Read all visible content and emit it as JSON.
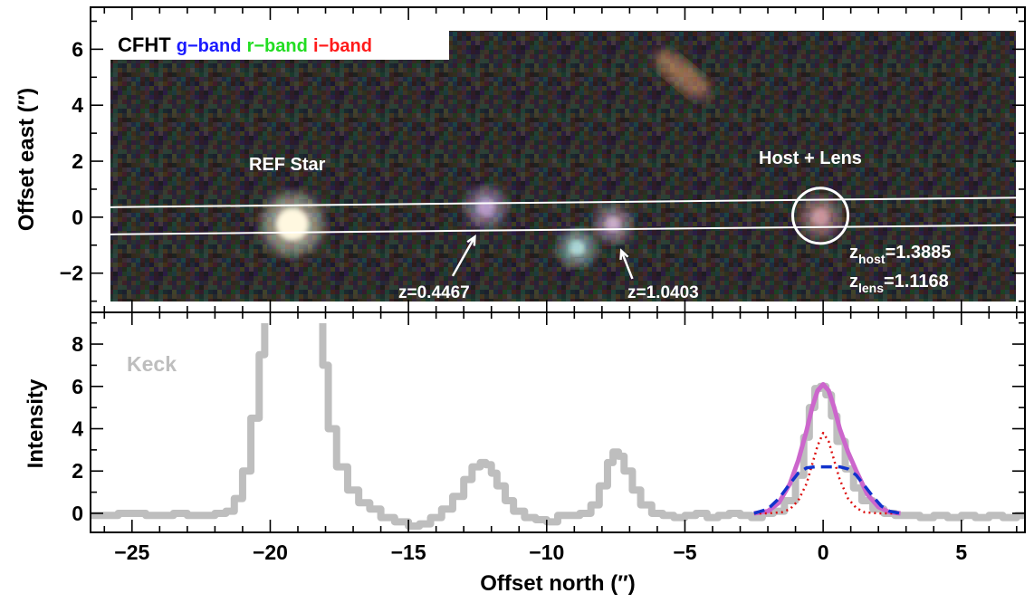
{
  "chart_data": [
    {
      "type": "image",
      "title_parts": [
        {
          "text": "CFHT",
          "color": "#000000"
        },
        {
          "text": "g−band",
          "color": "#1a1aff"
        },
        {
          "text": "r−band",
          "color": "#22dd22"
        },
        {
          "text": "i−band",
          "color": "#ff1a1a"
        }
      ],
      "ylabel": "Offset east (″)",
      "xlim": [
        -26.5,
        7.3
      ],
      "ylim": [
        -3.4,
        7.5
      ],
      "y_ticks": [
        "−2",
        "0",
        "2",
        "4",
        "6"
      ],
      "y_tick_values": [
        -2,
        0,
        2,
        4,
        6
      ],
      "image_extent_x": [
        -25.9,
        6.9
      ],
      "image_extent_y": [
        -3.0,
        6.7
      ],
      "slit_lines": [
        {
          "x": [
            -26.5,
            7.3
          ],
          "y": [
            0.35,
            0.7
          ]
        },
        {
          "x": [
            -26.5,
            7.3
          ],
          "y": [
            -0.62,
            -0.28
          ]
        }
      ],
      "sources": [
        {
          "name": "REF Star",
          "x": -19.2,
          "y": -0.25,
          "color": "#fff8e0"
        },
        {
          "name": "z=0.4467 galaxy",
          "x": -12.2,
          "y": 0.35,
          "color": "#d8b8f0"
        },
        {
          "name": "blue star",
          "x": -8.9,
          "y": -1.1,
          "color": "#ccffff"
        },
        {
          "name": "z=1.0403 galaxy",
          "x": -7.6,
          "y": -0.25,
          "color": "#e8c8e8"
        },
        {
          "name": "bright galaxy",
          "x": -5.1,
          "y": 5.1,
          "color": "#e8a070"
        },
        {
          "name": "Host + Lens",
          "x": -0.1,
          "y": 0.0,
          "color": "#f0b0b8"
        }
      ],
      "circle": {
        "x": -0.1,
        "y": 0.05,
        "r": 1.0
      },
      "labels": {
        "ref_star": "REF Star",
        "host_lens": "Host + Lens",
        "z1": "z=0.4467",
        "z2": "z=1.0403",
        "z_host_prefix": "z",
        "z_host_sub": "host",
        "z_host_val": "=1.3885",
        "z_lens_prefix": "z",
        "z_lens_sub": "lens",
        "z_lens_val": "=1.1168"
      },
      "arrows": [
        {
          "from": [
            -13.4,
            -2.1
          ],
          "to": [
            -12.6,
            -0.7
          ]
        },
        {
          "from": [
            -6.9,
            -2.2
          ],
          "to": [
            -7.3,
            -1.2
          ]
        }
      ]
    },
    {
      "type": "line",
      "legend_label": "Keck",
      "xlabel": "Offset north (″)",
      "ylabel": "Intensity",
      "xlim": [
        -26.5,
        7.3
      ],
      "ylim": [
        -0.9,
        9.5
      ],
      "x_ticks": [
        "−25",
        "−20",
        "−15",
        "−10",
        "−5",
        "0",
        "5"
      ],
      "x_tick_values": [
        -25,
        -20,
        -15,
        -10,
        -5,
        0,
        5
      ],
      "y_ticks": [
        "0",
        "2",
        "4",
        "6",
        "8"
      ],
      "y_tick_values": [
        0,
        2,
        4,
        6,
        8
      ],
      "series": [
        {
          "name": "Keck",
          "color": "#bebebe",
          "style": "step",
          "x": [
            -26.5,
            -25.5,
            -24.5,
            -23.5,
            -23.0,
            -22.5,
            -22.0,
            -21.6,
            -21.3,
            -21.0,
            -20.7,
            -20.4,
            -20.2,
            -20.0,
            -19.6,
            -19.2,
            -18.8,
            -18.4,
            -18.1,
            -17.9,
            -17.6,
            -17.2,
            -16.8,
            -16.4,
            -16.0,
            -15.5,
            -15.0,
            -14.6,
            -14.2,
            -13.8,
            -13.4,
            -13.0,
            -12.7,
            -12.4,
            -12.2,
            -12.0,
            -11.8,
            -11.5,
            -11.2,
            -10.8,
            -10.4,
            -10.0,
            -9.6,
            -9.2,
            -8.8,
            -8.4,
            -8.1,
            -7.8,
            -7.6,
            -7.4,
            -7.2,
            -6.9,
            -6.6,
            -6.2,
            -5.8,
            -5.4,
            -5.0,
            -4.6,
            -4.2,
            -3.8,
            -3.4,
            -3.0,
            -2.6,
            -2.2,
            -1.8,
            -1.4,
            -1.0,
            -0.7,
            -0.5,
            -0.3,
            -0.1,
            0.1,
            0.3,
            0.5,
            0.8,
            1.1,
            1.4,
            1.8,
            2.2,
            2.6,
            3.0,
            3.5,
            4.0,
            4.5,
            5.0,
            5.5,
            6.0,
            6.5,
            7.0,
            7.3
          ],
          "y": [
            -0.1,
            0.0,
            -0.1,
            0.0,
            -0.1,
            -0.1,
            0.0,
            0.1,
            0.7,
            2.0,
            4.5,
            7.5,
            9.5,
            9.5,
            9.5,
            9.5,
            9.5,
            9.5,
            7.0,
            4.0,
            2.2,
            1.1,
            0.5,
            0.2,
            -0.2,
            -0.4,
            -0.6,
            -0.5,
            -0.2,
            0.2,
            0.8,
            1.6,
            2.2,
            2.4,
            2.3,
            1.9,
            1.3,
            0.6,
            0.1,
            -0.2,
            -0.3,
            -0.4,
            -0.1,
            -0.1,
            0.0,
            0.4,
            1.3,
            2.4,
            2.9,
            2.7,
            2.0,
            1.1,
            0.4,
            0.0,
            -0.1,
            -0.2,
            -0.1,
            0.0,
            -0.2,
            -0.1,
            0.0,
            -0.1,
            -0.2,
            0.0,
            0.1,
            0.6,
            1.8,
            3.6,
            5.0,
            5.9,
            6.0,
            5.6,
            4.6,
            3.4,
            2.1,
            1.2,
            0.6,
            0.2,
            0.0,
            -0.1,
            -0.1,
            -0.2,
            -0.1,
            -0.2,
            -0.1,
            -0.2,
            -0.1,
            -0.2,
            -0.1,
            -0.2
          ]
        },
        {
          "name": "total model",
          "color": "#cc66cc",
          "style": "solid",
          "x": [
            -2.5,
            -2.0,
            -1.6,
            -1.2,
            -0.9,
            -0.6,
            -0.4,
            -0.2,
            0.0,
            0.2,
            0.4,
            0.6,
            0.9,
            1.2,
            1.6,
            2.0,
            2.4,
            2.8
          ],
          "y": [
            0.0,
            0.1,
            0.5,
            1.4,
            2.5,
            3.9,
            5.0,
            5.8,
            6.1,
            5.8,
            5.0,
            4.0,
            2.9,
            2.0,
            0.9,
            0.3,
            0.05,
            0.0
          ]
        },
        {
          "name": "lens component",
          "color": "#dd1111",
          "style": "dotted",
          "x": [
            -2.5,
            -2.0,
            -1.5,
            -1.2,
            -0.9,
            -0.6,
            -0.4,
            -0.2,
            0.0,
            0.2,
            0.4,
            0.6,
            0.9,
            1.2,
            1.5,
            2.0,
            2.5,
            2.8
          ],
          "y": [
            0.0,
            0.0,
            0.05,
            0.2,
            0.6,
            1.4,
            2.3,
            3.2,
            3.8,
            3.4,
            2.5,
            1.6,
            0.7,
            0.25,
            0.05,
            0.0,
            0.0,
            0.0
          ]
        },
        {
          "name": "host component",
          "color": "#1133cc",
          "style": "dashed",
          "x": [
            -2.5,
            -2.0,
            -1.6,
            -1.2,
            -0.9,
            -0.6,
            -0.3,
            0.0,
            0.3,
            0.6,
            0.9,
            1.2,
            1.5,
            1.8,
            2.1,
            2.4,
            2.8
          ],
          "y": [
            0.0,
            0.2,
            0.7,
            1.4,
            1.9,
            2.15,
            2.2,
            2.2,
            2.2,
            2.2,
            2.1,
            1.8,
            1.3,
            0.8,
            0.35,
            0.1,
            0.0
          ]
        }
      ]
    }
  ]
}
